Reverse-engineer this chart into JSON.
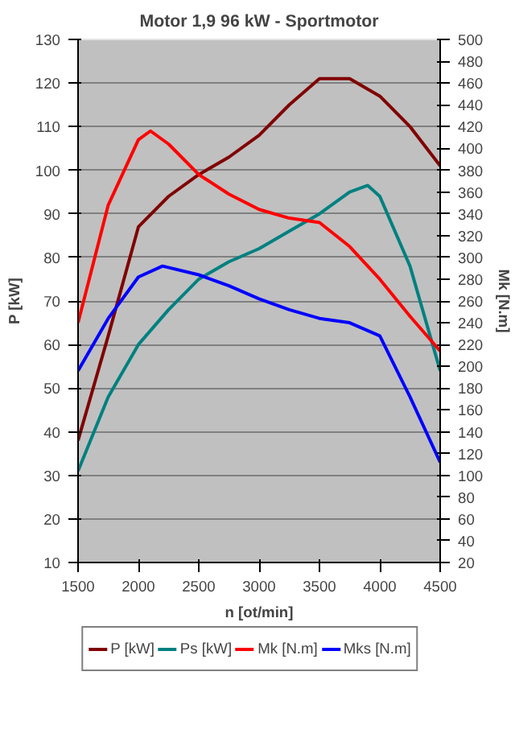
{
  "chart_data": {
    "type": "line",
    "title": "Motor 1,9 96 kW - Sportmotor",
    "xlabel": "n [ot/min]",
    "ylabel": "P [kW]",
    "y2label": "Mk [N.m]",
    "xlim": [
      1500,
      4500
    ],
    "xticks": [
      1500,
      2000,
      2500,
      3000,
      3500,
      4000,
      4500
    ],
    "ylim": [
      10,
      130
    ],
    "yticks": [
      10,
      20,
      30,
      40,
      50,
      60,
      70,
      80,
      90,
      100,
      110,
      120,
      130
    ],
    "y2lim": [
      20,
      500
    ],
    "y2ticks": [
      20,
      40,
      60,
      80,
      100,
      120,
      140,
      160,
      180,
      200,
      220,
      240,
      260,
      280,
      300,
      320,
      340,
      360,
      380,
      400,
      420,
      440,
      460,
      480,
      500
    ],
    "grid": "y",
    "legend": "bottom",
    "series": [
      {
        "name": "P [kW]",
        "color": "#800000",
        "x": [
          1500,
          1750,
          2000,
          2250,
          2500,
          2750,
          3000,
          3250,
          3500,
          3750,
          4000,
          4250,
          4500
        ],
        "values": [
          38,
          62,
          87,
          94,
          99,
          103,
          108,
          115,
          121,
          121,
          117,
          110,
          101
        ]
      },
      {
        "name": "Ps [kW]",
        "color": "#008080",
        "x": [
          1500,
          1750,
          2000,
          2250,
          2500,
          2750,
          3000,
          3250,
          3500,
          3750,
          3900,
          4000,
          4250,
          4500
        ],
        "values": [
          31,
          48,
          60,
          68,
          75,
          79,
          82,
          86,
          90,
          95,
          96.5,
          94,
          78,
          54
        ]
      },
      {
        "name": "Mk [N.m]",
        "color": "#ff0000",
        "axis": "y2",
        "x": [
          1500,
          1750,
          2000,
          2100,
          2250,
          2500,
          2750,
          3000,
          3250,
          3500,
          3750,
          4000,
          4250,
          4500
        ],
        "values": [
          240,
          348,
          408,
          416,
          404,
          376,
          358,
          344,
          336,
          332,
          310,
          280,
          246,
          214
        ]
      },
      {
        "name": "Mks [N.m]",
        "color": "#0000ff",
        "axis": "y2",
        "x": [
          1500,
          1750,
          2000,
          2200,
          2500,
          2750,
          3000,
          3250,
          3500,
          3750,
          4000,
          4250,
          4500
        ],
        "values": [
          196,
          244,
          282,
          292,
          284,
          274,
          262,
          252,
          244,
          240,
          228,
          172,
          112
        ]
      }
    ]
  }
}
